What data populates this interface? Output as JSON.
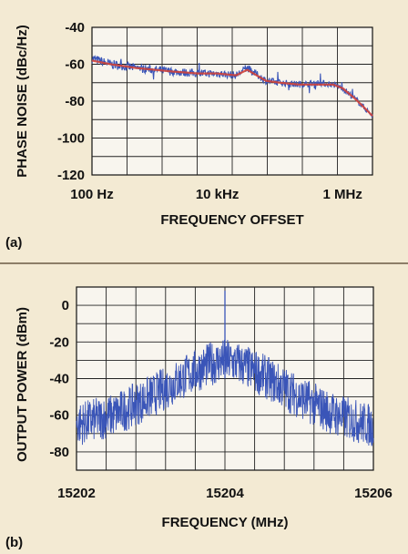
{
  "chart_data": [
    {
      "panel_label": "(a)",
      "type": "line",
      "xlabel": "FREQUENCY OFFSET",
      "ylabel": "PHASE NOISE (dBc/Hz)",
      "x_scale": "log",
      "xlim": [
        100,
        3000000
      ],
      "ylim": [
        -120,
        -40
      ],
      "x_ticks": [
        100,
        10000,
        1000000
      ],
      "x_tick_labels": [
        "100 Hz",
        "10 kHz",
        "1 MHz"
      ],
      "y_ticks": [
        -40,
        -60,
        -80,
        -100,
        -120
      ],
      "y_tick_labels": [
        "-40",
        "-60",
        "-80",
        "-100",
        "-120"
      ],
      "grid": true,
      "series": [
        {
          "color": "#3a55b8",
          "style": "noisy",
          "x": [
            100,
            200,
            500,
            1000,
            2000,
            5000,
            10000,
            20000,
            30000,
            60000,
            100000,
            200000,
            400000,
            700000,
            1000000,
            1500000,
            2000000,
            3000000
          ],
          "y": [
            -57,
            -60,
            -62,
            -63,
            -64,
            -65,
            -65,
            -66,
            -62,
            -69,
            -70,
            -71,
            -70,
            -71,
            -73,
            -78,
            -82,
            -88
          ]
        },
        {
          "color": "#d0433a",
          "style": "smooth",
          "x": [
            100,
            200,
            500,
            1000,
            2000,
            5000,
            10000,
            20000,
            30000,
            60000,
            100000,
            200000,
            400000,
            700000,
            1000000,
            1500000,
            2000000,
            3000000
          ],
          "y": [
            -58,
            -60,
            -62,
            -63,
            -64,
            -65,
            -65,
            -66,
            -63,
            -69,
            -70,
            -71,
            -71,
            -71,
            -73,
            -78,
            -82,
            -88
          ]
        }
      ]
    },
    {
      "panel_label": "(b)",
      "type": "line",
      "xlabel": "FREQUENCY (MHz)",
      "ylabel": "OUTPUT POWER (dBm)",
      "xlim": [
        15202,
        15206
      ],
      "ylim": [
        -90,
        10
      ],
      "x_ticks": [
        15202,
        15204,
        15206
      ],
      "x_tick_labels": [
        "15202",
        "15204",
        "15206"
      ],
      "y_ticks": [
        0,
        -20,
        -40,
        -60,
        -80
      ],
      "y_tick_labels": [
        "0",
        "-20",
        "-40",
        "-60",
        "-80"
      ],
      "grid": true,
      "series": [
        {
          "color": "#3a55b8",
          "style": "spectrum",
          "center": 15204,
          "peak": 8,
          "x": [
            15202,
            15202.5,
            15203,
            15203.5,
            15203.8,
            15204,
            15204.2,
            15204.5,
            15205,
            15205.5,
            15206
          ],
          "y": [
            -65,
            -60,
            -50,
            -38,
            -32,
            -30,
            -32,
            -38,
            -50,
            -60,
            -66
          ]
        }
      ]
    }
  ]
}
